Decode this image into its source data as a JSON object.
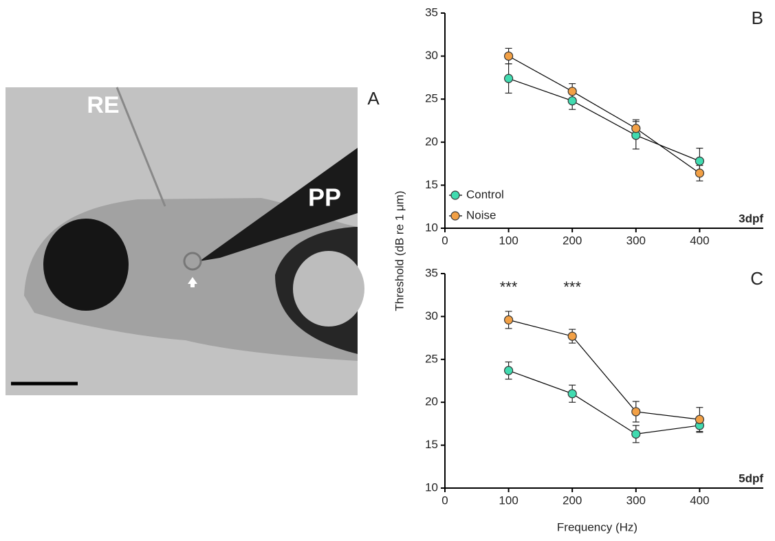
{
  "image_panel": {
    "label": "A",
    "annotations": [
      "RE",
      "PP"
    ]
  },
  "chart_data": [
    {
      "type": "line",
      "panel": "B",
      "stage": "3dpf",
      "ylabel": "Threshold (dB re 1 μm)",
      "x": [
        100,
        200,
        300,
        400
      ],
      "xlim": [
        0,
        500
      ],
      "xticks": [
        0,
        100,
        200,
        300,
        400
      ],
      "ylim": [
        10,
        35
      ],
      "yticks": [
        10,
        15,
        20,
        25,
        30,
        35
      ],
      "legend": "lower left",
      "series": [
        {
          "name": "Control",
          "color": "#41dbb0",
          "values": [
            27.4,
            24.8,
            20.8,
            17.8
          ],
          "errors": [
            1.7,
            1.0,
            1.6,
            1.5
          ]
        },
        {
          "name": "Noise",
          "color": "#f2a045",
          "values": [
            30.0,
            25.9,
            21.6,
            16.4
          ],
          "errors": [
            0.9,
            0.9,
            1.0,
            0.9
          ]
        }
      ]
    },
    {
      "type": "line",
      "panel": "C",
      "stage": "5dpf",
      "xlabel": "Frequency (Hz)",
      "x": [
        100,
        200,
        300,
        400
      ],
      "xlim": [
        0,
        500
      ],
      "xticks": [
        0,
        100,
        200,
        300,
        400
      ],
      "ylim": [
        10,
        35
      ],
      "yticks": [
        10,
        15,
        20,
        25,
        30,
        35
      ],
      "significance": [
        "***",
        "***",
        null,
        null
      ],
      "series": [
        {
          "name": "Control",
          "color": "#41dbb0",
          "values": [
            23.7,
            21.0,
            16.3,
            17.3
          ],
          "errors": [
            1.0,
            1.0,
            1.0,
            0.8
          ]
        },
        {
          "name": "Noise",
          "color": "#f2a045",
          "values": [
            29.6,
            27.7,
            18.9,
            18.0
          ],
          "errors": [
            1.0,
            0.8,
            1.2,
            1.4
          ]
        }
      ]
    }
  ]
}
